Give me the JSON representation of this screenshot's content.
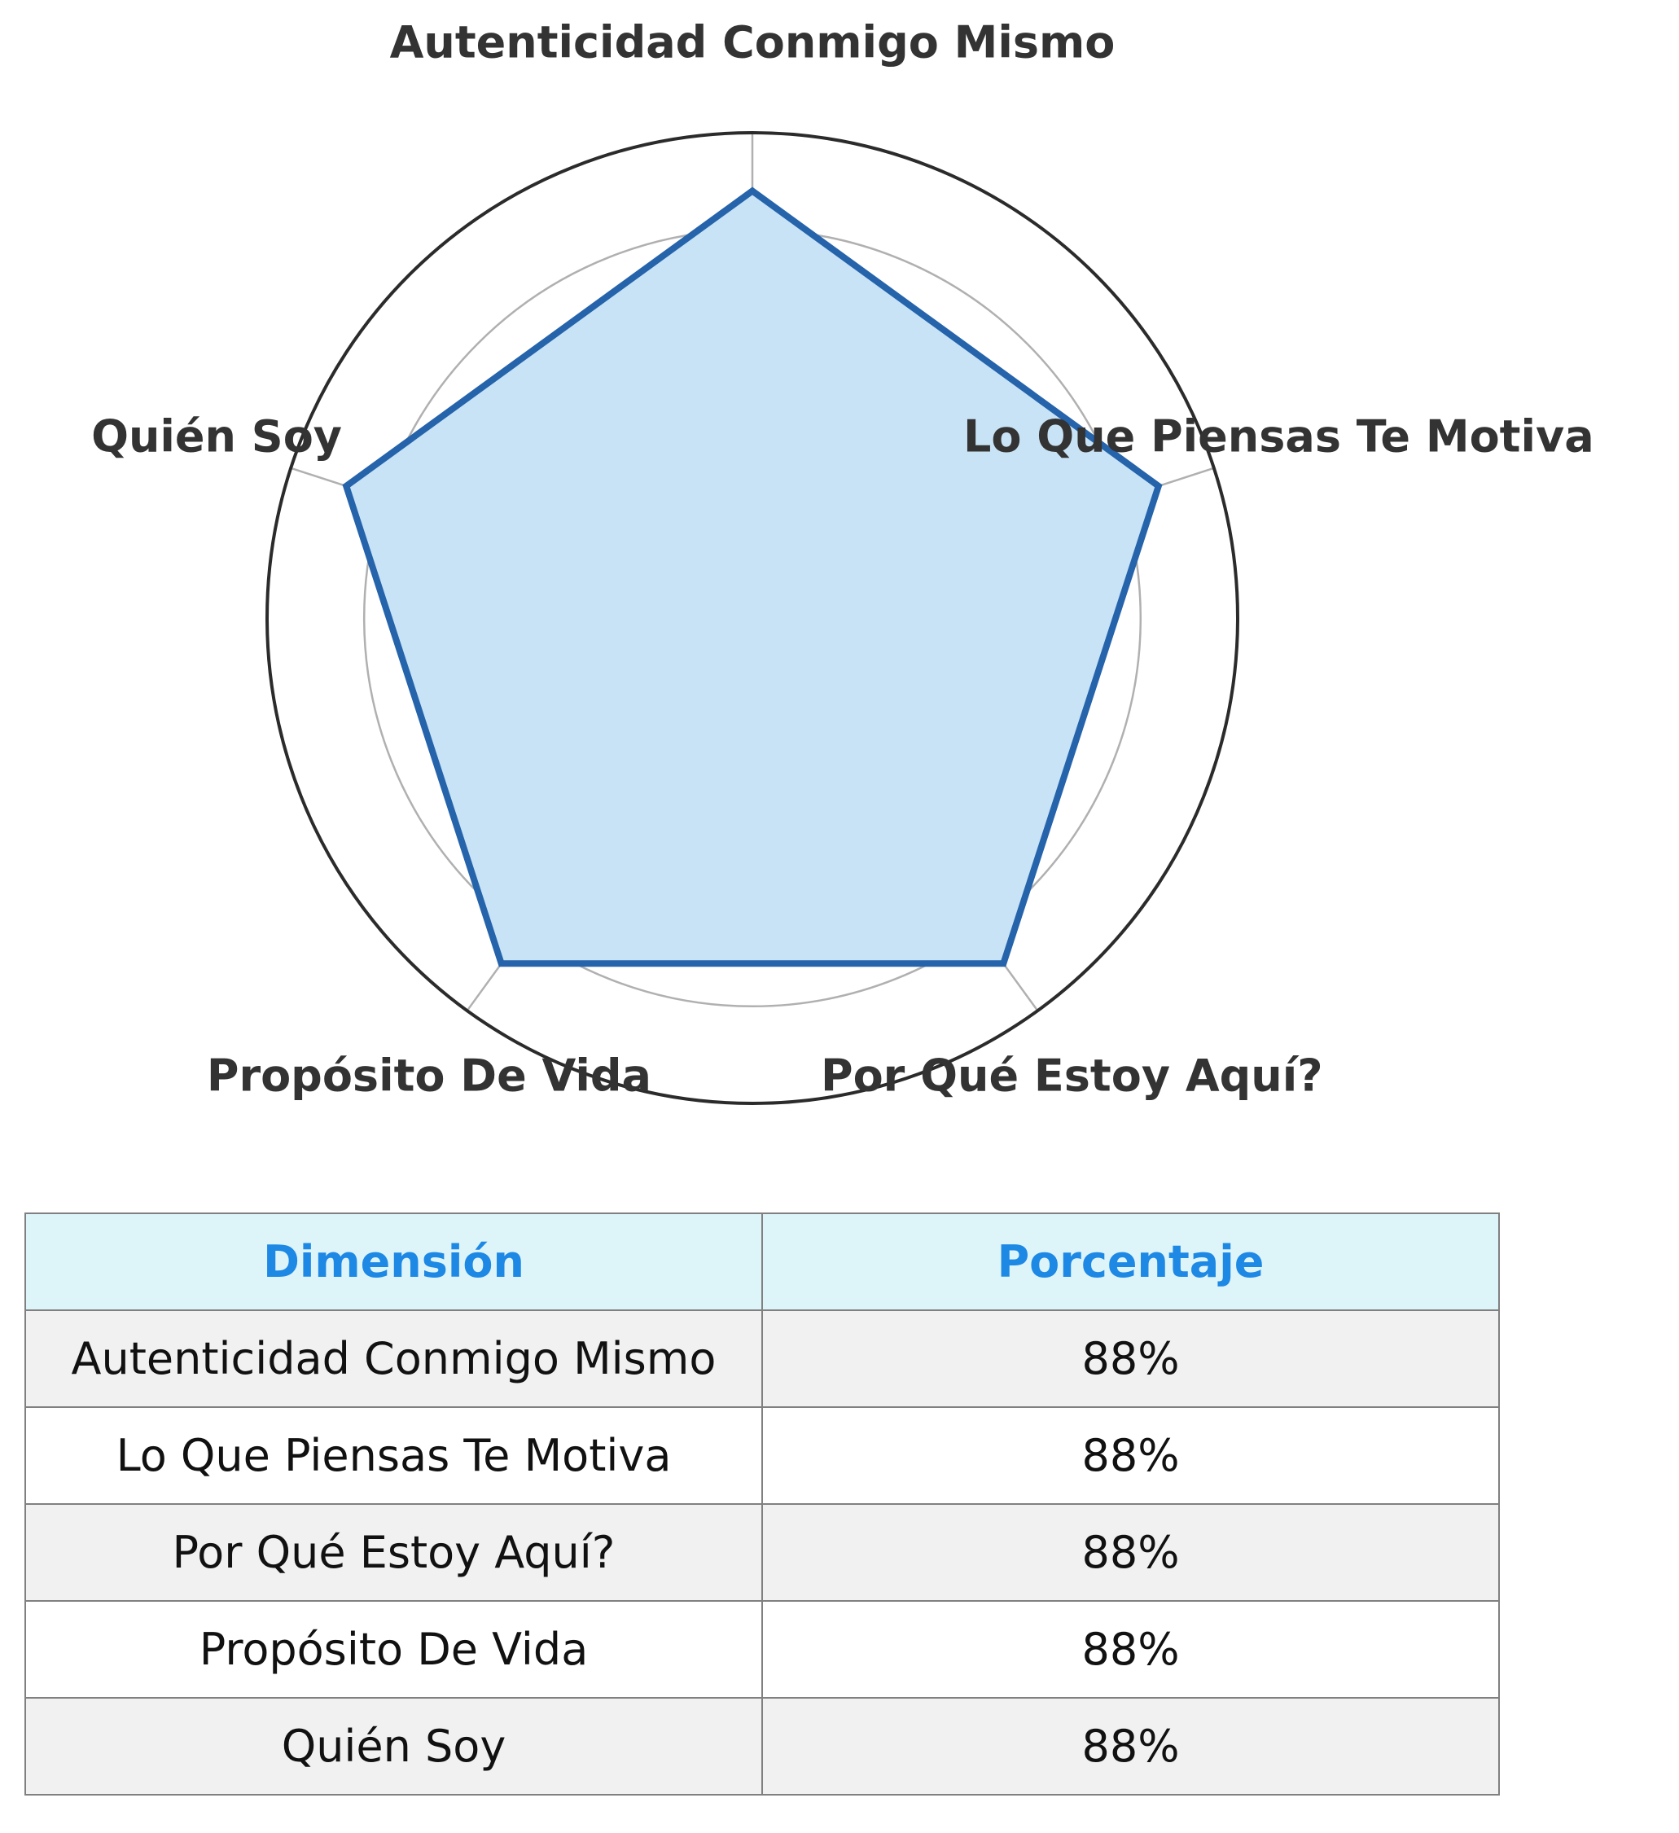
{
  "chart_data": {
    "type": "radar",
    "categories": [
      "Autenticidad Conmigo Mismo",
      "Lo Que Piensas Te Motiva",
      "Por Qué Estoy Aquí?",
      "Propósito De Vida",
      "Quién Soy"
    ],
    "series": [
      {
        "values": [
          88,
          88,
          88,
          88,
          88
        ]
      }
    ],
    "rlim": [
      0,
      100
    ],
    "grid": true,
    "colors": {
      "line": "#2563ab",
      "fill": "#c8e3f5",
      "grid": "#b0b0b0",
      "frame": "#2b2b2b"
    }
  },
  "table": {
    "headers": [
      "Dimensión",
      "Porcentaje"
    ],
    "rows": [
      [
        "Autenticidad Conmigo Mismo",
        "88%"
      ],
      [
        "Lo Que Piensas Te Motiva",
        "88%"
      ],
      [
        "Por Qué Estoy Aquí?",
        "88%"
      ],
      [
        "Propósito De Vida",
        "88%"
      ],
      [
        "Quién Soy",
        "88%"
      ]
    ],
    "colors": {
      "header_bg": "#ddf5f9",
      "header_text": "#1e88e5",
      "odd_row_bg": "#f1f1f1",
      "even_row_bg": "#ffffff",
      "border": "#808080"
    }
  }
}
